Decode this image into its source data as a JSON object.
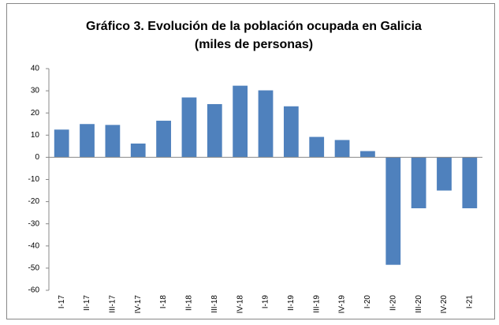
{
  "chart_data": {
    "type": "bar",
    "title": "Gráfico 3. Evolución de la población ocupada en Galicia",
    "subtitle": "(miles de personas)",
    "categories": [
      "I-17",
      "II-17",
      "III-17",
      "IV-17",
      "I-18",
      "II-18",
      "III-18",
      "IV-18",
      "I-19",
      "II-19",
      "III-19",
      "IV-19",
      "I-20",
      "II-20",
      "III-20",
      "IV-20",
      "I-21"
    ],
    "values": [
      12.5,
      15,
      14.6,
      6.2,
      16.5,
      27,
      24,
      32.3,
      30.2,
      23,
      9.2,
      7.8,
      2.8,
      -48.5,
      -23,
      -15,
      -23
    ],
    "color": "#4f81bd",
    "ylim": [
      -60,
      40
    ],
    "yticks": [
      -60,
      -50,
      -40,
      -30,
      -20,
      -10,
      0,
      10,
      20,
      30,
      40
    ],
    "grid": false
  }
}
